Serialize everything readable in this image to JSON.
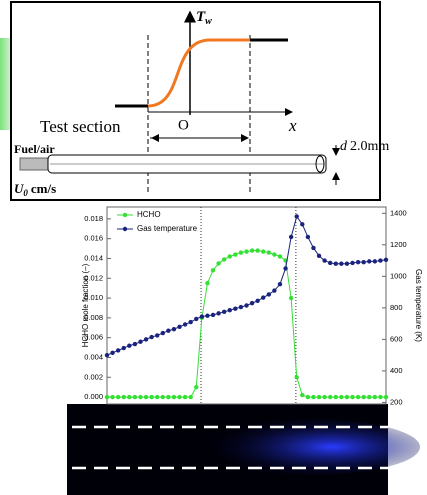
{
  "diagram": {
    "wall_temp_symbol": "T",
    "wall_temp_subscript": "w",
    "axis_label": "x",
    "origin_label": "O",
    "section_label": "Test section",
    "inlet_label": "Fuel/air",
    "velocity_symbol": "U",
    "velocity_subscript": "0",
    "velocity_unit": "cm/s",
    "diameter_symbol": "d",
    "diameter_value": "2.0mm"
  },
  "chart_data": {
    "type": "line",
    "x": [
      0,
      2,
      4,
      6,
      8,
      10,
      12,
      14,
      16,
      18,
      20,
      22,
      24,
      26,
      28,
      30,
      32,
      34,
      36,
      38,
      40,
      42,
      44,
      46,
      48,
      50,
      52,
      54,
      56,
      58,
      60,
      62,
      64,
      66,
      68,
      70,
      72,
      74,
      76,
      78,
      80,
      82,
      84,
      86,
      88,
      90,
      92,
      94,
      96,
      98,
      100
    ],
    "xlim": [
      0,
      100
    ],
    "ylim": [
      -0.0007,
      0.0192
    ],
    "yticks": [
      {
        "value": 0,
        "label": "0.000"
      },
      {
        "value": 0.002,
        "label": "0.002"
      },
      {
        "value": 0.004,
        "label": "0.004"
      },
      {
        "value": 0.006,
        "label": "0.006"
      },
      {
        "value": 0.008,
        "label": "0.008"
      },
      {
        "value": 0.01,
        "label": "0.010"
      },
      {
        "value": 0.012,
        "label": "0.012"
      },
      {
        "value": 0.014,
        "label": "0.014"
      },
      {
        "value": 0.016,
        "label": "0.016"
      },
      {
        "value": 0.018,
        "label": "0.018"
      }
    ],
    "y2lim": [
      190,
      1440
    ],
    "y2ticks": [
      200,
      400,
      600,
      800,
      1000,
      1200,
      1400
    ],
    "ylabel": "HCHO mole fraction (–)",
    "y2label": "Gas temperature (K)",
    "markers_x": [
      33.7,
      67.7
    ],
    "legend": "upper left",
    "series": [
      {
        "name": "HCHO",
        "color": "#33e033",
        "values": [
          0,
          0,
          0,
          0,
          0,
          0,
          0,
          0,
          0,
          0,
          0,
          0,
          0,
          0,
          0,
          0,
          0.001,
          0.008,
          0.0115,
          0.0128,
          0.0135,
          0.0139,
          0.0142,
          0.0144,
          0.0146,
          0.0147,
          0.0148,
          0.0148,
          0.0147,
          0.0146,
          0.0144,
          0.0142,
          0.0138,
          0.01,
          0.002,
          0.0002,
          0,
          0,
          0,
          0,
          0,
          0,
          0,
          0,
          0,
          0,
          0,
          0,
          0,
          0,
          0
        ]
      },
      {
        "name": "Gas temperature",
        "color": "#1a237e",
        "axis": "y2",
        "values": [
          500,
          515,
          530,
          545,
          560,
          570,
          585,
          600,
          615,
          625,
          640,
          655,
          665,
          680,
          695,
          710,
          730,
          745,
          750,
          755,
          765,
          775,
          785,
          795,
          805,
          815,
          830,
          845,
          865,
          885,
          910,
          950,
          1050,
          1250,
          1380,
          1330,
          1250,
          1180,
          1130,
          1100,
          1085,
          1080,
          1080,
          1080,
          1085,
          1090,
          1090,
          1095,
          1095,
          1100,
          1105
        ]
      }
    ]
  }
}
